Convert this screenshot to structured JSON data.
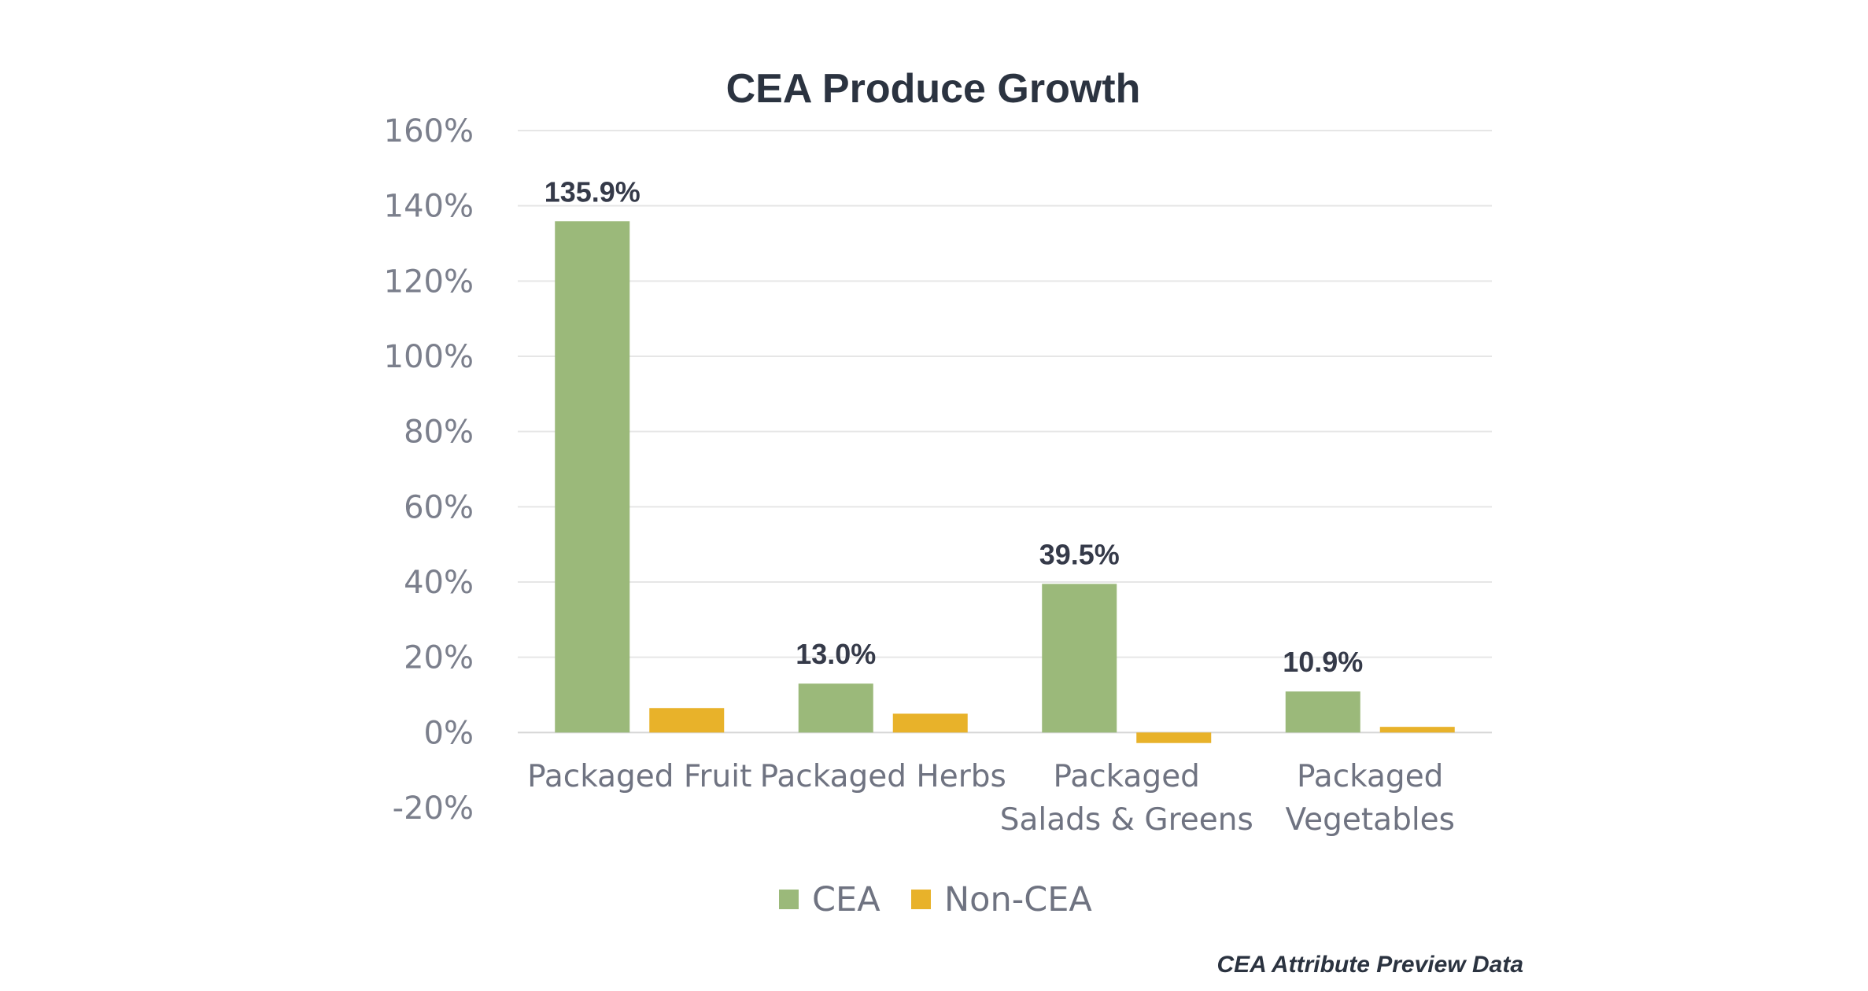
{
  "chart_data": {
    "type": "bar",
    "title": "CEA Produce Growth",
    "categories": [
      [
        "Packaged Fruit"
      ],
      [
        "Packaged Herbs"
      ],
      [
        "Packaged",
        "Salads & Greens"
      ],
      [
        "Packaged",
        "Vegetables"
      ]
    ],
    "series": [
      {
        "name": "CEA",
        "color": "#9bb97a",
        "values": [
          135.9,
          13.0,
          39.5,
          10.9
        ],
        "labels": [
          "135.9%",
          "13.0%",
          "39.5%",
          "10.9%"
        ]
      },
      {
        "name": "Non-CEA",
        "color": "#e8b22a",
        "values": [
          6.5,
          5.0,
          -2.8,
          1.5
        ],
        "labels": []
      }
    ],
    "ylim": [
      -20,
      160
    ],
    "yticks": [
      -20,
      0,
      20,
      40,
      60,
      80,
      100,
      120,
      140,
      160
    ],
    "ytick_labels": [
      "-20%",
      "0%",
      "20%",
      "40%",
      "60%",
      "80%",
      "100%",
      "120%",
      "140%",
      "160%"
    ],
    "xlabel": "",
    "ylabel": "",
    "grid": true,
    "legend_position": "bottom"
  },
  "footer": {
    "source_note": "CEA Attribute Preview Data"
  }
}
